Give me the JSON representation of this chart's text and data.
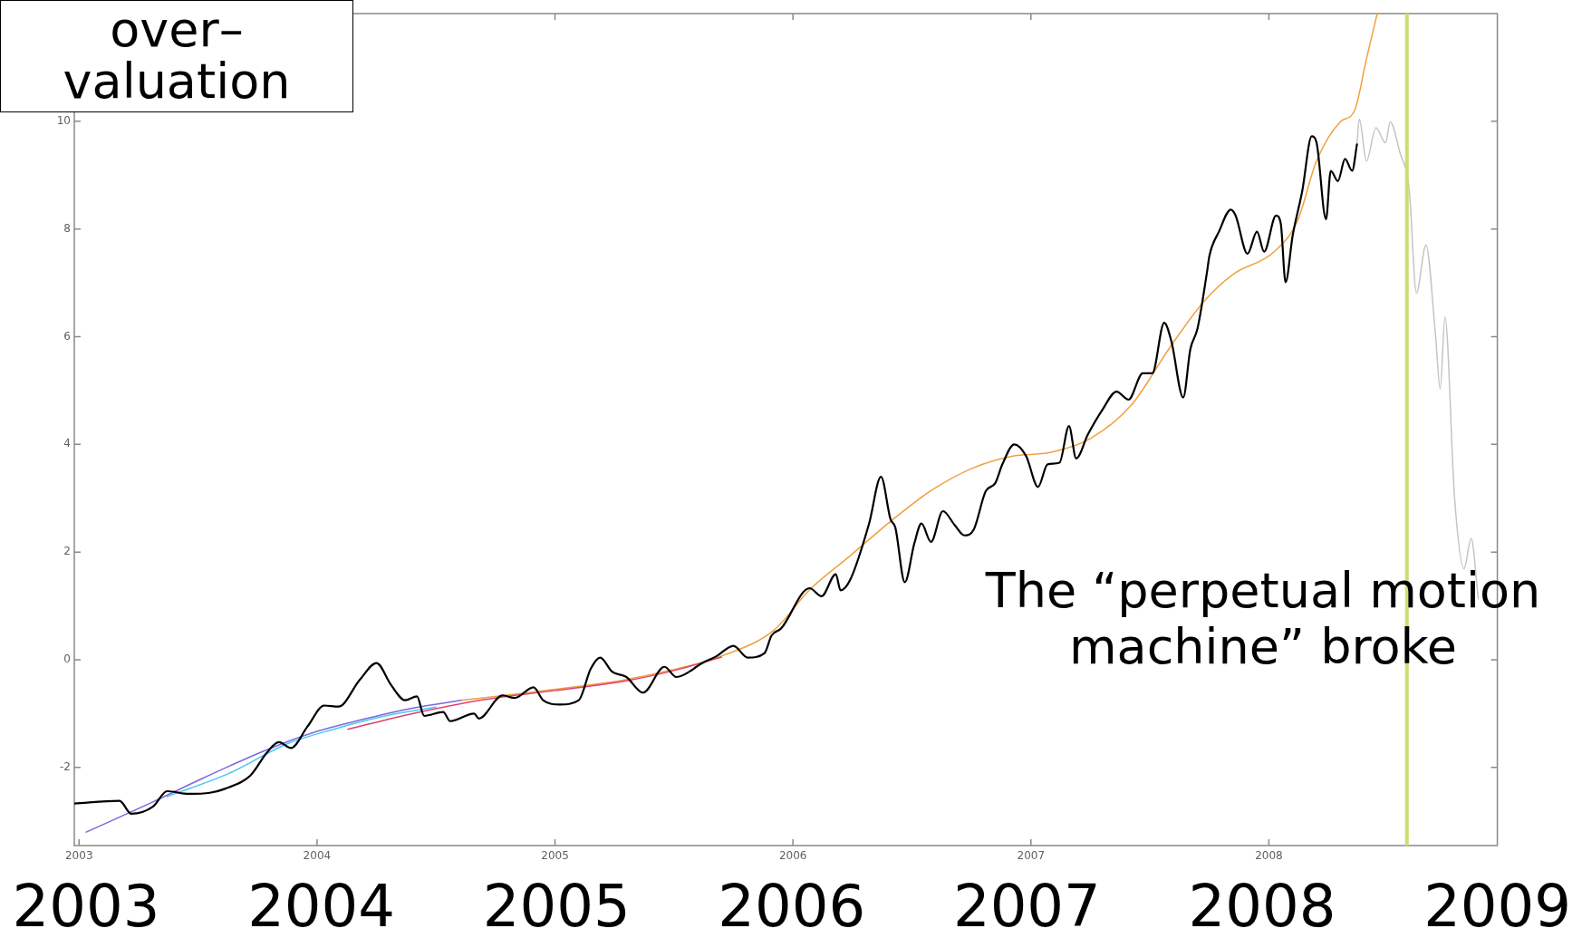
{
  "chart_data": {
    "type": "line",
    "annotations": [
      "over–valuation",
      "The “perpetual motion machine” broke"
    ],
    "series": [
      {
        "color": "#000000",
        "x": [
          2002.98,
          2003.17,
          2003.22,
          2003.31,
          2003.37,
          2003.46,
          2003.55,
          2003.61,
          2003.72,
          2003.79,
          2003.84,
          2003.89,
          2003.96,
          2004.03,
          2004.09,
          2004.18,
          2004.25,
          2004.31,
          2004.37,
          2004.42,
          2004.45,
          2004.53,
          2004.56,
          2004.66,
          2004.68,
          2004.78,
          2004.83,
          2004.91,
          2004.95,
          2005.02,
          2005.1,
          2005.15,
          2005.19,
          2005.24,
          2005.3,
          2005.37,
          2005.46,
          2005.51,
          2005.62,
          2005.68,
          2005.75,
          2005.81,
          2005.88,
          2005.91,
          2005.95,
          2006.07,
          2006.12,
          2006.18,
          2006.2,
          2006.24,
          2006.32,
          2006.37,
          2006.41,
          2006.43,
          2006.47,
          2006.51,
          2006.54,
          2006.58,
          2006.63,
          2006.68,
          2006.72,
          2006.76,
          2006.81,
          2006.85,
          2006.88,
          2006.93,
          2006.98,
          2007.03,
          2007.07,
          2007.12,
          2007.16,
          2007.19,
          2007.24,
          2007.3,
          2007.36,
          2007.41,
          2007.47,
          2007.51,
          2007.56,
          2007.59,
          2007.64,
          2007.67,
          2007.7,
          2007.74,
          2007.75,
          2007.79,
          2007.84,
          2007.86,
          2007.91,
          2007.95,
          2007.98,
          2008.03,
          2008.05,
          2008.07,
          2008.1,
          2008.14,
          2008.18,
          2008.2,
          2008.24,
          2008.26,
          2008.29,
          2008.32,
          2008.35,
          2008.37
        ],
        "values": [
          -2.67,
          -2.62,
          -2.86,
          -2.73,
          -2.44,
          -2.49,
          -2.47,
          -2.4,
          -2.15,
          -1.72,
          -1.53,
          -1.64,
          -1.24,
          -0.85,
          -0.87,
          -0.37,
          -0.06,
          -0.46,
          -0.75,
          -0.68,
          -1.04,
          -0.97,
          -1.14,
          -1.0,
          -1.09,
          -0.66,
          -0.71,
          -0.51,
          -0.75,
          -0.83,
          -0.75,
          -0.17,
          0.04,
          -0.22,
          -0.32,
          -0.61,
          -0.13,
          -0.32,
          -0.06,
          0.07,
          0.26,
          0.04,
          0.12,
          0.45,
          0.58,
          1.33,
          1.18,
          1.59,
          1.29,
          1.48,
          2.53,
          3.4,
          2.61,
          2.46,
          1.44,
          2.16,
          2.53,
          2.19,
          2.76,
          2.5,
          2.31,
          2.42,
          3.13,
          3.28,
          3.63,
          4.0,
          3.78,
          3.21,
          3.63,
          3.66,
          4.34,
          3.74,
          4.19,
          4.64,
          4.98,
          4.83,
          5.32,
          5.32,
          6.26,
          5.92,
          4.87,
          5.77,
          6.15,
          7.2,
          7.5,
          7.95,
          8.36,
          8.25,
          7.54,
          7.95,
          7.58,
          8.25,
          8.1,
          7.01,
          7.88,
          8.7,
          9.72,
          9.61,
          8.18,
          9.08,
          8.89,
          9.3,
          9.08,
          9.57
        ]
      },
      {
        "color": "#c4c4c4",
        "x": [
          2008.37,
          2008.38,
          2008.41,
          2008.45,
          2008.49,
          2008.51,
          2008.55,
          2008.59,
          2008.62,
          2008.66,
          2008.7,
          2008.72,
          2008.74,
          2008.78,
          2008.82,
          2008.85,
          2008.88
        ],
        "values": [
          9.57,
          10.04,
          9.26,
          9.88,
          9.6,
          9.99,
          9.43,
          8.71,
          6.81,
          7.7,
          6.04,
          5.03,
          6.37,
          3.03,
          1.69,
          2.25,
          1.13
        ]
      },
      {
        "color": "#e0406a",
        "x": [
          2004.13,
          2004.4,
          2004.7,
          2005.0,
          2005.3,
          2005.5,
          2005.7
        ],
        "values": [
          -1.29,
          -1.0,
          -0.74,
          -0.57,
          -0.39,
          -0.2,
          0.05
        ]
      },
      {
        "color": "#48c8f0",
        "x": [
          2003.37,
          2003.63,
          2003.87,
          2004.07,
          2004.29,
          2004.5
        ],
        "values": [
          -2.54,
          -2.11,
          -1.57,
          -1.29,
          -1.04,
          -0.88
        ]
      },
      {
        "color": "#f0a040",
        "x": [
          2004.61,
          2004.83,
          2005.05,
          2005.27,
          2005.49,
          2005.7,
          2005.92,
          2006.07,
          2006.24,
          2006.41,
          2006.58,
          2006.75,
          2006.92,
          2007.08,
          2007.25,
          2007.42,
          2007.59,
          2007.73,
          2007.85,
          2008.02,
          2008.12,
          2008.2,
          2008.3,
          2008.36,
          2008.41,
          2008.455
        ],
        "values": [
          -0.75,
          -0.64,
          -0.52,
          -0.39,
          -0.19,
          0.07,
          0.55,
          1.3,
          1.93,
          2.57,
          3.14,
          3.55,
          3.78,
          3.85,
          4.11,
          4.72,
          5.84,
          6.67,
          7.16,
          7.57,
          8.15,
          9.26,
          9.99,
          10.2,
          11.16,
          12.0
        ]
      },
      {
        "color": "#7a68e0",
        "x": [
          2003.03,
          2003.31,
          2003.52,
          2003.79,
          2004.0,
          2004.18,
          2004.4,
          2004.61
        ],
        "values": [
          -3.2,
          -2.64,
          -2.2,
          -1.67,
          -1.33,
          -1.12,
          -0.9,
          -0.75
        ]
      }
    ],
    "xlim": [
      2002.98,
      2008.96
    ],
    "xticks": [
      2003,
      2004,
      2005,
      2006,
      2007,
      2008
    ],
    "x2lim": [
      2002.95,
      2009
    ],
    "x2ticks": [
      2003,
      2004,
      2005,
      2006,
      2007,
      2008,
      2009
    ],
    "ylim": [
      -3.45,
      12
    ],
    "yticks": [
      -2,
      0,
      2,
      4,
      6,
      8,
      10
    ],
    "ref_lines": [
      {
        "axis": "x",
        "value": 2008.58,
        "color": "#d0dc70"
      }
    ],
    "grid": false,
    "legend": false
  }
}
